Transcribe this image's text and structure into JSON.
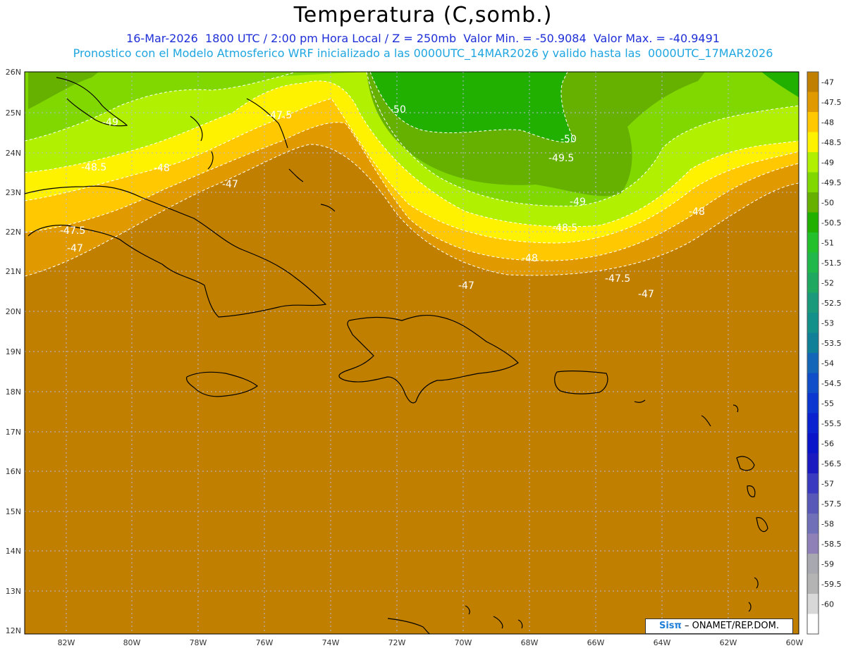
{
  "title": "Temperatura (C,somb.)",
  "subtitle_1": "16-Mar-2026  1800 UTC / 2:00 pm Hora Local / Z = 250mb  Valor Min. = -50.9084  Valor Max. = -40.9491",
  "subtitle_2": "Pronostico con el Modelo Atmosferico WRF inicializado a las 0000UTC_14MAR2026 y valido hasta las  0000UTC_17MAR2026",
  "credit": {
    "logo": "Sisπ",
    "text": "– ONAMET/REP.DOM."
  },
  "lat_labels": [
    "26N",
    "25N",
    "24N",
    "23N",
    "22N",
    "21N",
    "20N",
    "19N",
    "18N",
    "17N",
    "16N",
    "15N",
    "14N",
    "13N",
    "12N"
  ],
  "lon_labels": [
    "82W",
    "80W",
    "78W",
    "76W",
    "74W",
    "72W",
    "70W",
    "68W",
    "66W",
    "64W",
    "62W",
    "60W"
  ],
  "colorbar": [
    {
      "label": "-47",
      "color": "#c17f00"
    },
    {
      "label": "-47.5",
      "color": "#e09a00"
    },
    {
      "label": "-48",
      "color": "#ffc800"
    },
    {
      "label": "-48.5",
      "color": "#fff200"
    },
    {
      "label": "-49",
      "color": "#b0f000"
    },
    {
      "label": "-49.5",
      "color": "#80d800"
    },
    {
      "label": "-50",
      "color": "#66b000"
    },
    {
      "label": "-50.5",
      "color": "#22b000"
    },
    {
      "label": "-51",
      "color": "#22c02a"
    },
    {
      "label": "-51.5",
      "color": "#20b84a"
    },
    {
      "label": "-52",
      "color": "#1fa860"
    },
    {
      "label": "-52.5",
      "color": "#1a9a7a"
    },
    {
      "label": "-53",
      "color": "#13908a"
    },
    {
      "label": "-53.5",
      "color": "#108099"
    },
    {
      "label": "-54",
      "color": "#1366b8"
    },
    {
      "label": "-54.5",
      "color": "#0f4ec8"
    },
    {
      "label": "-55",
      "color": "#0b36d0"
    },
    {
      "label": "-55.5",
      "color": "#0a22d0"
    },
    {
      "label": "-56",
      "color": "#0a14c8"
    },
    {
      "label": "-56.5",
      "color": "#1a1ac0"
    },
    {
      "label": "-57",
      "color": "#3a3ac0"
    },
    {
      "label": "-57.5",
      "color": "#5858b8"
    },
    {
      "label": "-58",
      "color": "#7070b8"
    },
    {
      "label": "-58.5",
      "color": "#9080b8"
    },
    {
      "label": "-59",
      "color": "#a8a8b0"
    },
    {
      "label": "-59.5",
      "color": "#b4b4b4"
    },
    {
      "label": "-60",
      "color": "#d8d8d8"
    },
    {
      "label": "",
      "color": "#ffffff"
    }
  ],
  "contour_labels": [
    {
      "text": "-49"
    },
    {
      "text": "-48.5"
    },
    {
      "text": "-48"
    },
    {
      "text": "-47.5"
    },
    {
      "text": "-47"
    },
    {
      "text": "-47.5"
    },
    {
      "text": "-47"
    },
    {
      "text": "-50"
    },
    {
      "text": "-50"
    },
    {
      "text": "-49.5"
    },
    {
      "text": "-49"
    },
    {
      "text": "-48.5"
    },
    {
      "text": "-48"
    },
    {
      "text": "-48"
    },
    {
      "text": "-47.5"
    },
    {
      "text": "-47"
    },
    {
      "text": "-47"
    }
  ]
}
